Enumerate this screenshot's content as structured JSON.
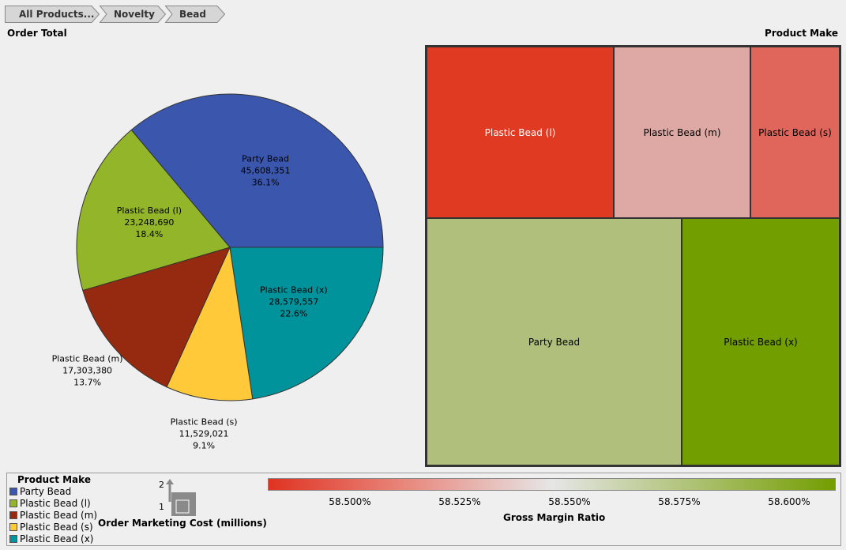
{
  "breadcrumbs": [
    "All Products...",
    "Novelty",
    "Bead"
  ],
  "left_title": "Order Total",
  "right_title": "Product Make",
  "colors": {
    "Party Bead": "#3a57ad",
    "Plastic Bead (l)": "#93b52a",
    "Plastic Bead (m)": "#962a10",
    "Plastic Bead (s)": "#ffc93a",
    "Plastic Bead (x)": "#00939c"
  },
  "chart_data": [
    {
      "type": "pie",
      "title": "Order Total",
      "slices": [
        {
          "label": "Party Bead",
          "value": 45608351,
          "value_text": "45,608,351",
          "percent_text": "36.1%"
        },
        {
          "label": "Plastic Bead (x)",
          "value": 28579557,
          "value_text": "28,579,557",
          "percent_text": "22.6%"
        },
        {
          "label": "Plastic Bead (s)",
          "value": 11529021,
          "value_text": "11,529,021",
          "percent_text": "9.1%"
        },
        {
          "label": "Plastic Bead (m)",
          "value": 17303380,
          "value_text": "17,303,380",
          "percent_text": "13.7%"
        },
        {
          "label": "Plastic Bead (l)",
          "value": 23248690,
          "value_text": "23,248,690",
          "percent_text": "18.4%"
        }
      ]
    },
    {
      "type": "heatmap",
      "title": "Product Make",
      "tiles": [
        {
          "label": "Plastic Bead (l)",
          "color": "#e03a22"
        },
        {
          "label": "Plastic Bead (m)",
          "color": "#dea9a5"
        },
        {
          "label": "Plastic Bead (s)",
          "color": "#e0665b"
        },
        {
          "label": "Party Bead",
          "color": "#b0c07c"
        },
        {
          "label": "Plastic Bead (x)",
          "color": "#739e00"
        }
      ],
      "size_metric": "Order Marketing Cost (millions)",
      "color_metric": "Gross Margin Ratio",
      "color_scale_ticks": [
        "58.500%",
        "58.525%",
        "58.550%",
        "58.575%",
        "58.600%"
      ]
    }
  ],
  "legend": {
    "title": "Product Make",
    "items": [
      "Party Bead",
      "Plastic Bead (l)",
      "Plastic Bead (m)",
      "Plastic Bead (s)",
      "Plastic Bead (x)"
    ],
    "size_ticks": [
      "2",
      "1"
    ],
    "size_label": "Order Marketing Cost (millions)",
    "gradient_label": "Gross Margin Ratio",
    "gradient_stops": [
      "#e03322",
      "#e88a80",
      "#e6e6e6",
      "#aec274",
      "#739e00"
    ]
  }
}
